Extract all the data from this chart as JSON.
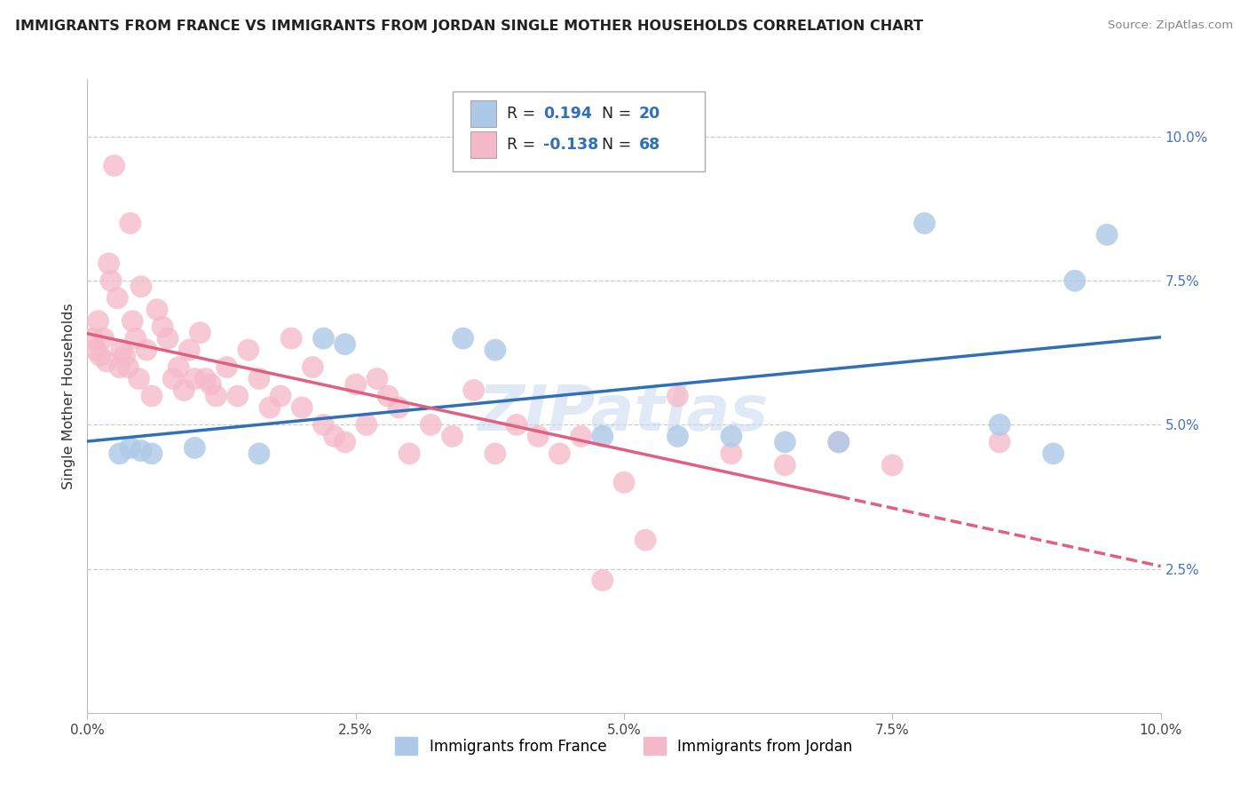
{
  "title": "IMMIGRANTS FROM FRANCE VS IMMIGRANTS FROM JORDAN SINGLE MOTHER HOUSEHOLDS CORRELATION CHART",
  "source": "Source: ZipAtlas.com",
  "ylabel": "Single Mother Households",
  "legend_france": "Immigrants from France",
  "legend_jordan": "Immigrants from Jordan",
  "R_france": 0.194,
  "N_france": 20,
  "R_jordan": -0.138,
  "N_jordan": 68,
  "france_color": "#adc9e8",
  "jordan_color": "#f5b8c8",
  "france_line_color": "#3070b8",
  "jordan_line_color": "#e06080",
  "watermark": "ZIPatlas",
  "france_x": [
    0.3,
    0.4,
    0.5,
    0.6,
    1.0,
    1.6,
    2.2,
    2.4,
    3.5,
    3.8,
    4.8,
    5.5,
    6.0,
    6.5,
    7.0,
    7.8,
    8.5,
    9.0,
    9.2,
    9.5
  ],
  "france_y": [
    4.5,
    4.6,
    4.55,
    4.5,
    4.6,
    4.5,
    6.5,
    6.4,
    6.5,
    6.3,
    4.8,
    4.8,
    4.8,
    4.7,
    4.7,
    8.5,
    5.0,
    4.5,
    7.5,
    8.3
  ],
  "jordan_x": [
    0.05,
    0.08,
    0.1,
    0.12,
    0.15,
    0.18,
    0.2,
    0.22,
    0.25,
    0.28,
    0.3,
    0.32,
    0.35,
    0.38,
    0.4,
    0.42,
    0.45,
    0.48,
    0.5,
    0.55,
    0.6,
    0.65,
    0.7,
    0.75,
    0.8,
    0.85,
    0.9,
    0.95,
    1.0,
    1.05,
    1.1,
    1.15,
    1.2,
    1.3,
    1.4,
    1.5,
    1.6,
    1.7,
    1.8,
    1.9,
    2.0,
    2.1,
    2.2,
    2.3,
    2.4,
    2.5,
    2.6,
    2.7,
    2.8,
    2.9,
    3.0,
    3.2,
    3.4,
    3.6,
    3.8,
    4.0,
    4.2,
    4.4,
    4.6,
    4.8,
    5.0,
    5.2,
    5.5,
    6.0,
    6.5,
    7.0,
    7.5,
    8.5
  ],
  "jordan_y": [
    6.5,
    6.3,
    6.8,
    6.2,
    6.5,
    6.1,
    7.8,
    7.5,
    9.5,
    7.2,
    6.0,
    6.3,
    6.2,
    6.0,
    8.5,
    6.8,
    6.5,
    5.8,
    7.4,
    6.3,
    5.5,
    7.0,
    6.7,
    6.5,
    5.8,
    6.0,
    5.6,
    6.3,
    5.8,
    6.6,
    5.8,
    5.7,
    5.5,
    6.0,
    5.5,
    6.3,
    5.8,
    5.3,
    5.5,
    6.5,
    5.3,
    6.0,
    5.0,
    4.8,
    4.7,
    5.7,
    5.0,
    5.8,
    5.5,
    5.3,
    4.5,
    5.0,
    4.8,
    5.6,
    4.5,
    5.0,
    4.8,
    4.5,
    4.8,
    2.3,
    4.0,
    3.0,
    5.5,
    4.5,
    4.3,
    4.7,
    4.3,
    4.7
  ]
}
